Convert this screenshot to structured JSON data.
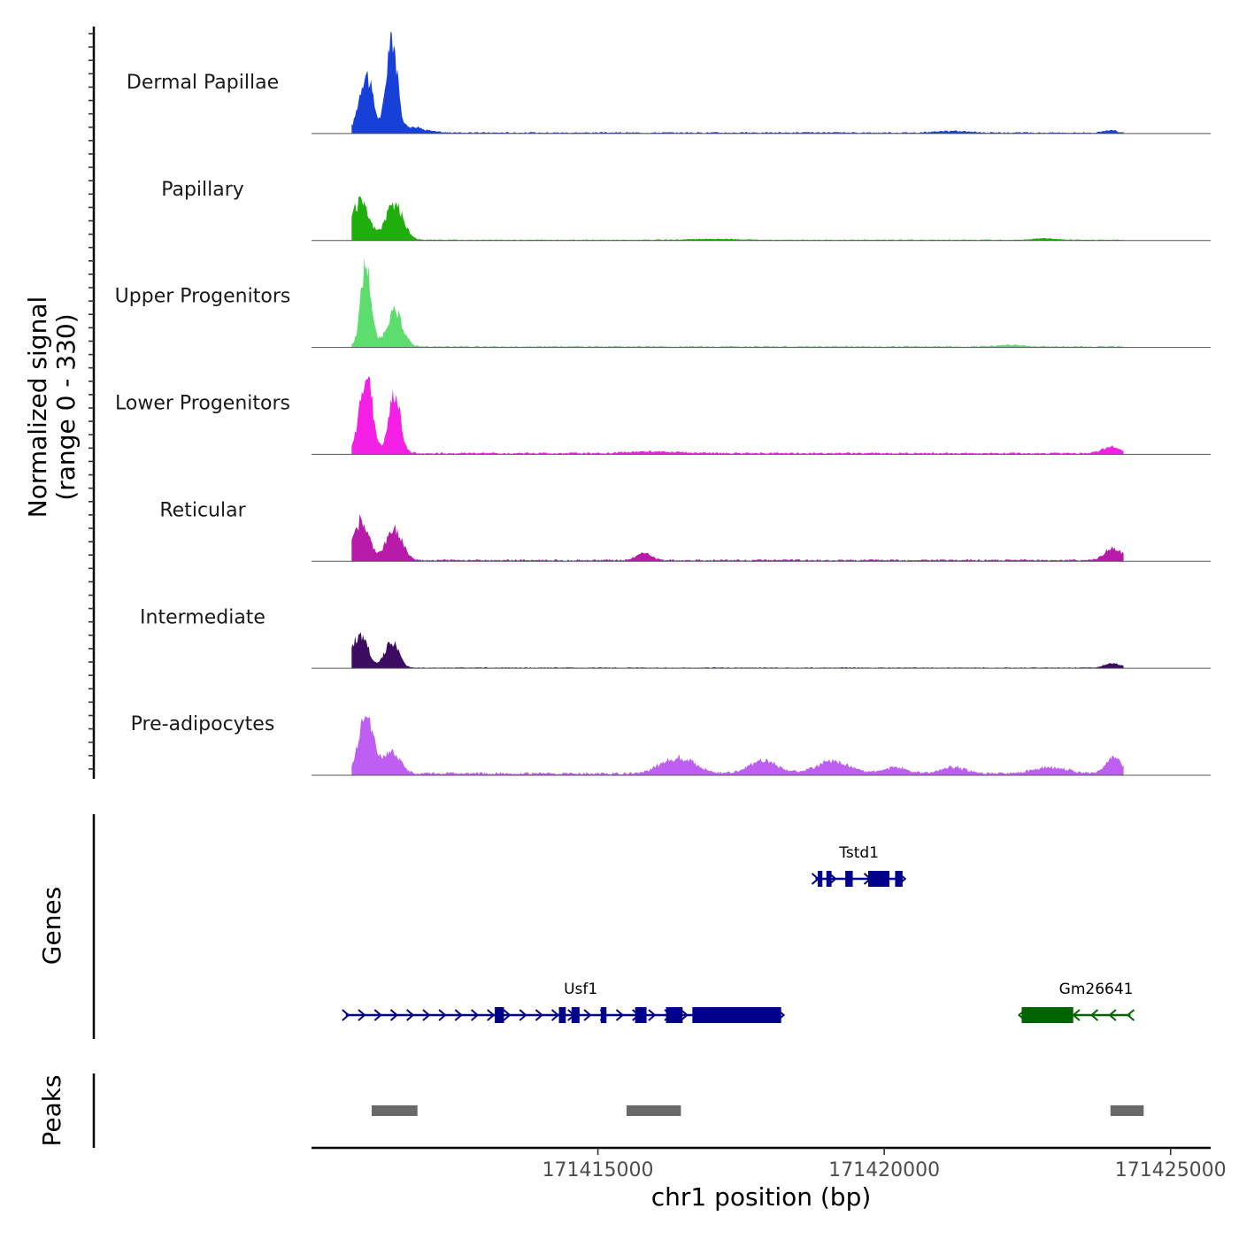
{
  "chart_data": {
    "type": "area",
    "title": "",
    "ylabel_line1": "Normalized signal",
    "ylabel_line2": "(range 0 - 330)",
    "xlabel": "chr1 position (bp)",
    "genes_label": "Genes",
    "peaks_label": "Peaks",
    "xlim": [
      171410000,
      171425700
    ],
    "x_ticks": [
      171415000,
      171420000,
      171425000
    ],
    "x_tick_labels": [
      "171415000",
      "171420000",
      "171425000"
    ],
    "y_range": [
      0,
      330
    ],
    "signal_extent": [
      171410700,
      171424180
    ],
    "tracks": [
      {
        "name": "Dermal Papillae",
        "color": "#1740d9",
        "peaks": [
          {
            "x": 171410950,
            "h": 190,
            "w": 120
          },
          {
            "x": 171411400,
            "h": 310,
            "w": 90
          },
          {
            "x": 171411700,
            "h": 20,
            "w": 250
          },
          {
            "x": 171421200,
            "h": 5,
            "w": 300
          },
          {
            "x": 171423950,
            "h": 8,
            "w": 100
          }
        ],
        "baseline": 3
      },
      {
        "name": "Papillary",
        "color": "#1fae0b",
        "peaks": [
          {
            "x": 171410850,
            "h": 120,
            "w": 150
          },
          {
            "x": 171411450,
            "h": 115,
            "w": 150
          },
          {
            "x": 171417000,
            "h": 3,
            "w": 400
          },
          {
            "x": 171422800,
            "h": 5,
            "w": 200
          }
        ],
        "baseline": 2
      },
      {
        "name": "Upper Progenitors",
        "color": "#5ddd6d",
        "peaks": [
          {
            "x": 171410950,
            "h": 265,
            "w": 90
          },
          {
            "x": 171411450,
            "h": 110,
            "w": 140
          },
          {
            "x": 171422200,
            "h": 5,
            "w": 250
          }
        ],
        "baseline": 3
      },
      {
        "name": "Lower Progenitors",
        "color": "#f520e6",
        "peaks": [
          {
            "x": 171410950,
            "h": 260,
            "w": 110
          },
          {
            "x": 171411450,
            "h": 190,
            "w": 100
          },
          {
            "x": 171416000,
            "h": 6,
            "w": 400
          },
          {
            "x": 171423950,
            "h": 20,
            "w": 150
          }
        ],
        "baseline": 4
      },
      {
        "name": "Reticular",
        "color": "#b81aa9",
        "peaks": [
          {
            "x": 171410850,
            "h": 125,
            "w": 150
          },
          {
            "x": 171411450,
            "h": 100,
            "w": 140
          },
          {
            "x": 171415800,
            "h": 25,
            "w": 120
          },
          {
            "x": 171424000,
            "h": 40,
            "w": 150
          }
        ],
        "baseline": 4
      },
      {
        "name": "Intermediate",
        "color": "#3b0c62",
        "peaks": [
          {
            "x": 171410850,
            "h": 110,
            "w": 130
          },
          {
            "x": 171411400,
            "h": 85,
            "w": 120
          },
          {
            "x": 171424000,
            "h": 14,
            "w": 150
          }
        ],
        "baseline": 2
      },
      {
        "name": "Pre-adipocytes",
        "color": "#bf5ef2",
        "peaks": [
          {
            "x": 171410950,
            "h": 200,
            "w": 120
          },
          {
            "x": 171411400,
            "h": 70,
            "w": 150
          },
          {
            "x": 171416400,
            "h": 50,
            "w": 300
          },
          {
            "x": 171417900,
            "h": 40,
            "w": 250
          },
          {
            "x": 171419100,
            "h": 40,
            "w": 300
          },
          {
            "x": 171420200,
            "h": 20,
            "w": 200
          },
          {
            "x": 171421200,
            "h": 22,
            "w": 200
          },
          {
            "x": 171422900,
            "h": 20,
            "w": 300
          },
          {
            "x": 171424000,
            "h": 55,
            "w": 130
          }
        ],
        "baseline": 6
      }
    ],
    "genes": [
      {
        "name": "Tstd1",
        "strand": "+",
        "color": "#00008b",
        "start": 171418800,
        "end": 171420320,
        "row": 0,
        "exons": [
          [
            171418840,
            171418920
          ],
          [
            171418990,
            171419080
          ],
          [
            171419320,
            171419450
          ],
          [
            171419720,
            171420090
          ],
          [
            171420190,
            171420320
          ]
        ]
      },
      {
        "name": "Usf1",
        "strand": "+",
        "color": "#00008b",
        "start": 171410600,
        "end": 171418200,
        "row": 1,
        "exons": [
          [
            171413200,
            171413360
          ],
          [
            171414320,
            171414440
          ],
          [
            171414540,
            171414680
          ],
          [
            171415050,
            171415150
          ],
          [
            171415650,
            171415850
          ],
          [
            171416190,
            171416480
          ],
          [
            171416650,
            171418200
          ]
        ]
      },
      {
        "name": "Gm26641",
        "strand": "-",
        "color": "#006400",
        "start": 171422400,
        "end": 171424300,
        "row": 1,
        "exons": [
          [
            171422400,
            171423300
          ]
        ]
      }
    ],
    "peaks": [
      [
        171411050,
        171411850
      ],
      [
        171415500,
        171416450
      ],
      [
        171423950,
        171424530
      ]
    ]
  }
}
